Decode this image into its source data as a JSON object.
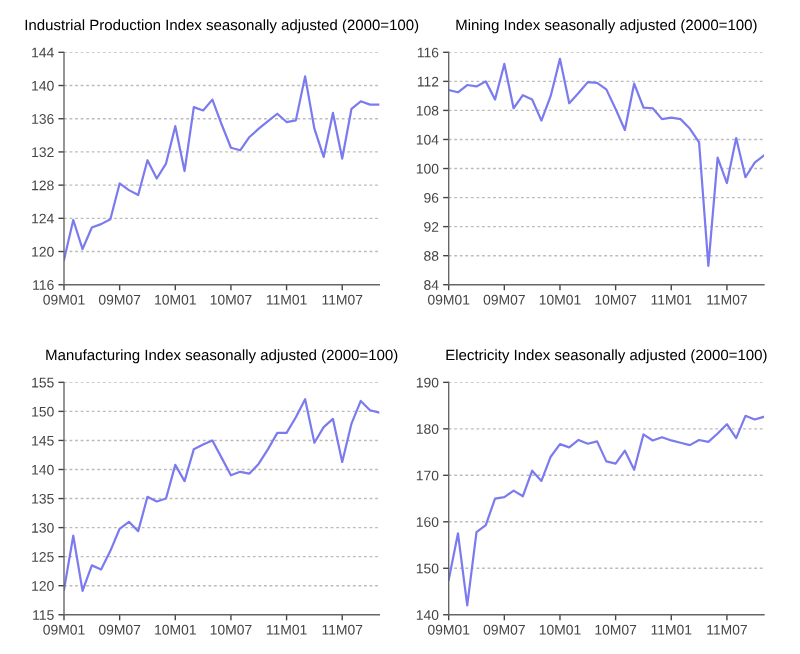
{
  "chart_data": [
    {
      "type": "line",
      "title": "Industrial Production Index seasonally adjusted (2000=100)",
      "categories": [
        "09M01",
        null,
        null,
        null,
        null,
        null,
        "09M07",
        null,
        null,
        null,
        null,
        null,
        "10M01",
        null,
        null,
        null,
        null,
        null,
        "10M07",
        null,
        null,
        null,
        null,
        null,
        "11M01",
        null,
        null,
        null,
        null,
        null,
        "11M07",
        null,
        null,
        null,
        null
      ],
      "series": [
        {
          "color": "#7b7bef",
          "values": [
            119.0,
            123.8,
            120.3,
            122.9,
            123.3,
            123.9,
            128.2,
            127.4,
            126.8,
            131.0,
            128.8,
            130.6,
            135.1,
            129.7,
            137.4,
            137.0,
            138.3,
            135.3,
            132.5,
            132.2,
            133.8,
            134.8,
            135.7,
            136.6,
            135.6,
            135.8,
            141.1,
            134.8,
            131.4,
            136.7,
            131.2,
            137.2,
            138.1,
            137.7,
            137.7
          ]
        }
      ],
      "ylim": [
        116,
        144
      ],
      "yticks": [
        116,
        120,
        124,
        128,
        132,
        136,
        140,
        144
      ],
      "grid": "y"
    },
    {
      "type": "line",
      "title": "Mining Index seasonally adjusted (2000=100)",
      "categories": [
        "09M01",
        null,
        null,
        null,
        null,
        null,
        "09M07",
        null,
        null,
        null,
        null,
        null,
        "10M01",
        null,
        null,
        null,
        null,
        null,
        "10M07",
        null,
        null,
        null,
        null,
        null,
        "11M01",
        null,
        null,
        null,
        null,
        null,
        "11M07",
        null,
        null,
        null,
        null
      ],
      "series": [
        {
          "color": "#7b7bef",
          "values": [
            110.8,
            110.5,
            111.5,
            111.3,
            112.0,
            109.5,
            114.4,
            108.3,
            110.1,
            109.5,
            106.6,
            110.0,
            115.1,
            109.0,
            110.4,
            111.9,
            111.8,
            110.9,
            108.2,
            105.3,
            111.7,
            108.4,
            108.3,
            106.8,
            107.0,
            106.8,
            105.5,
            103.6,
            86.6,
            101.5,
            98.0,
            104.2,
            98.8,
            100.8,
            101.8
          ]
        }
      ],
      "ylim": [
        84,
        116
      ],
      "yticks": [
        84,
        88,
        92,
        96,
        100,
        104,
        108,
        112,
        116
      ],
      "grid": "y"
    },
    {
      "type": "line",
      "title": "Manufacturing Index seasonally adjusted (2000=100)",
      "categories": [
        "09M01",
        null,
        null,
        null,
        null,
        null,
        "09M07",
        null,
        null,
        null,
        null,
        null,
        "10M01",
        null,
        null,
        null,
        null,
        null,
        "10M07",
        null,
        null,
        null,
        null,
        null,
        "11M01",
        null,
        null,
        null,
        null,
        null,
        "11M07",
        null,
        null,
        null,
        null
      ],
      "series": [
        {
          "color": "#7b7bef",
          "values": [
            119.3,
            128.6,
            119.1,
            123.5,
            122.8,
            126.0,
            129.8,
            131.0,
            129.4,
            135.3,
            134.5,
            135.0,
            140.8,
            138.0,
            143.5,
            144.3,
            145.0,
            142.0,
            139.0,
            139.6,
            139.3,
            141.0,
            143.5,
            146.3,
            146.3,
            149.0,
            152.1,
            144.6,
            147.3,
            148.7,
            141.3,
            147.9,
            151.8,
            150.2,
            149.8
          ]
        }
      ],
      "ylim": [
        115,
        155
      ],
      "yticks": [
        115,
        120,
        125,
        130,
        135,
        140,
        145,
        150,
        155
      ],
      "grid": "y"
    },
    {
      "type": "line",
      "title": "Electricity Index seasonally adjusted (2000=100)",
      "categories": [
        "09M01",
        null,
        null,
        null,
        null,
        null,
        "09M07",
        null,
        null,
        null,
        null,
        null,
        "10M01",
        null,
        null,
        null,
        null,
        null,
        "10M07",
        null,
        null,
        null,
        null,
        null,
        "11M01",
        null,
        null,
        null,
        null,
        null,
        "11M07",
        null,
        null,
        null,
        null
      ],
      "series": [
        {
          "color": "#7b7bef",
          "values": [
            147.5,
            157.5,
            142.0,
            157.8,
            159.3,
            165.0,
            165.3,
            166.7,
            165.5,
            171.0,
            168.8,
            174.0,
            176.7,
            176.0,
            177.6,
            176.8,
            177.3,
            173.0,
            172.5,
            175.3,
            171.2,
            178.8,
            177.5,
            178.2,
            177.5,
            177.0,
            176.5,
            177.6,
            177.2,
            179.0,
            181.0,
            178.0,
            182.8,
            182.0,
            182.6
          ]
        }
      ],
      "ylim": [
        140,
        190
      ],
      "yticks": [
        140,
        150,
        160,
        170,
        180,
        190
      ],
      "grid": "y"
    }
  ]
}
